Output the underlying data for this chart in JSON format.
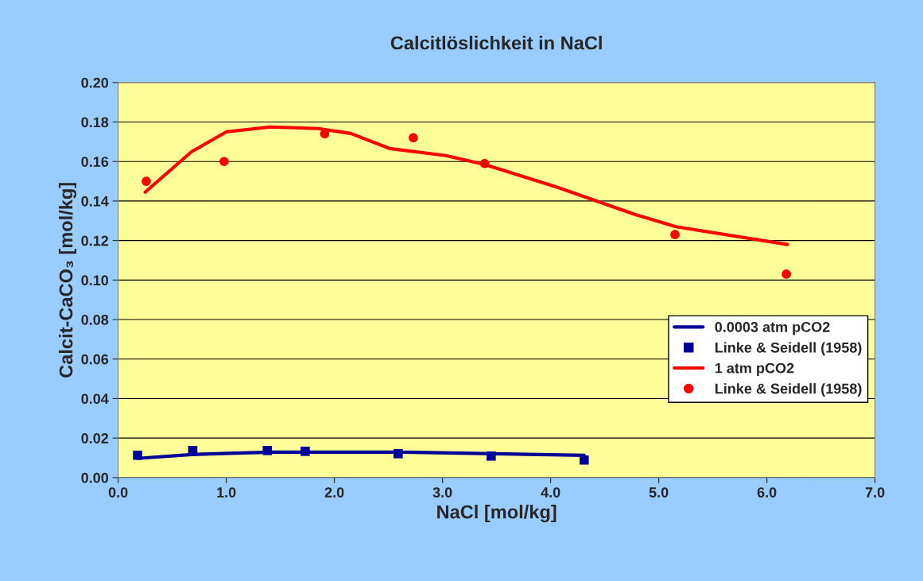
{
  "chart_data": {
    "type": "line",
    "title": "Calcitlöslichkeit in NaCl",
    "xlabel": "NaCl [mol/kg]",
    "ylabel": "Calcit-CaCO₃ [mol/kg]",
    "xlim": [
      0,
      7
    ],
    "ylim": [
      0,
      0.2
    ],
    "xticks": [
      {
        "value": 0,
        "label": "0.0"
      },
      {
        "value": 1,
        "label": "1.0"
      },
      {
        "value": 2,
        "label": "2.0"
      },
      {
        "value": 3,
        "label": "3.0"
      },
      {
        "value": 4,
        "label": "4.0"
      },
      {
        "value": 5,
        "label": "5.0"
      },
      {
        "value": 6,
        "label": "6.0"
      },
      {
        "value": 7,
        "label": "7.0"
      }
    ],
    "yticks": [
      {
        "value": 0,
        "label": "0.00"
      },
      {
        "value": 0.02,
        "label": "0.02"
      },
      {
        "value": 0.04,
        "label": "0.04"
      },
      {
        "value": 0.06,
        "label": "0.06"
      },
      {
        "value": 0.08,
        "label": "0.08"
      },
      {
        "value": 0.1,
        "label": "0.10"
      },
      {
        "value": 0.12,
        "label": "0.12"
      },
      {
        "value": 0.14,
        "label": "0.14"
      },
      {
        "value": 0.16,
        "label": "0.16"
      },
      {
        "value": 0.18,
        "label": "0.18"
      },
      {
        "value": 0.2,
        "label": "0.20"
      }
    ],
    "grid": "y",
    "legend": "right",
    "series": [
      {
        "name": "0.0003 atm pCO2",
        "color": "#000099",
        "marker": "none",
        "x": [
          0.18,
          0.68,
          1.41,
          2.59,
          4.31
        ],
        "values": [
          0.0097,
          0.0117,
          0.0129,
          0.0129,
          0.0113
        ]
      },
      {
        "name": "Linke & Seidell (1958)",
        "type": "scatter",
        "color": "#000099",
        "marker": "square",
        "x": [
          0.18,
          0.69,
          1.38,
          1.73,
          2.59,
          3.45,
          4.31
        ],
        "values": [
          0.0113,
          0.0137,
          0.0137,
          0.0133,
          0.0121,
          0.0109,
          0.0089
        ]
      },
      {
        "name": "1 atm pCO2",
        "color": "#ff0000",
        "marker": "none",
        "x": [
          0.25,
          0.68,
          1.0,
          1.41,
          1.85,
          2.15,
          2.51,
          3.03,
          3.39,
          4.06,
          4.79,
          5.16,
          6.19
        ],
        "values": [
          0.1445,
          0.165,
          0.175,
          0.1775,
          0.1767,
          0.1742,
          0.1666,
          0.163,
          0.1585,
          0.147,
          0.133,
          0.127,
          0.118
        ]
      },
      {
        "name": "Linke & Seidell (1958)",
        "type": "scatter",
        "color": "#ff0000",
        "marker": "circle",
        "x": [
          0.26,
          0.98,
          1.91,
          2.73,
          3.39,
          5.15,
          6.18
        ],
        "values": [
          0.15,
          0.16,
          0.174,
          0.172,
          0.159,
          0.123,
          0.103
        ]
      }
    ]
  }
}
